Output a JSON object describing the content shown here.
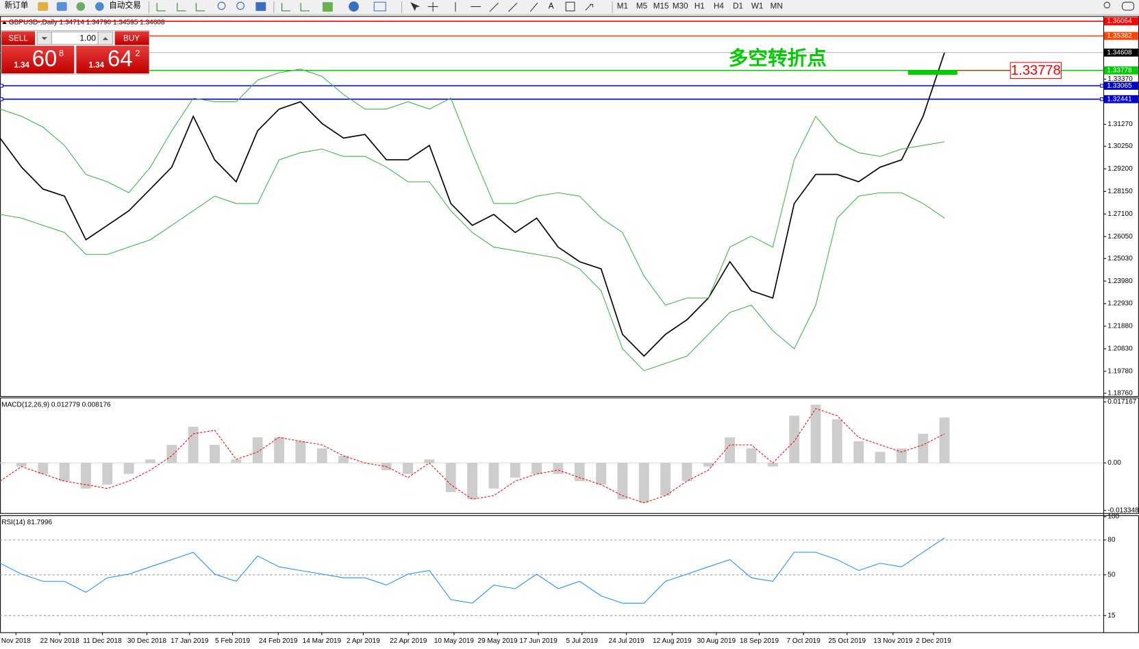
{
  "toolbar": {
    "new_order": "新订单",
    "auto_trading": "自动交易",
    "timeframes": [
      "M1",
      "M5",
      "M15",
      "M30",
      "H1",
      "H4",
      "D1",
      "W1",
      "MN"
    ]
  },
  "trade_panel": {
    "sell": "SELL",
    "buy": "BUY",
    "lots": "1.00",
    "sell_price": {
      "big_figure": "1.34",
      "pips": "60",
      "fraction": "8"
    },
    "buy_price": {
      "big_figure": "1.34",
      "pips": "64",
      "fraction": "2"
    }
  },
  "chart_data": [
    {
      "type": "line",
      "title": "GBPUSD-,Daily 1.34714 1.34790 1.34595 1.34608",
      "xlim": [
        0,
        51.4
      ],
      "ylim": [
        1.1863,
        1.3631
      ],
      "yticks": [
        {
          "value": 1.3337,
          "label": "1.33370"
        },
        {
          "value": 1.3127,
          "label": "1.31270"
        },
        {
          "value": 1.3025,
          "label": "1.30250"
        },
        {
          "value": 1.292,
          "label": "1.29200"
        },
        {
          "value": 1.2815,
          "label": "1.28150"
        },
        {
          "value": 1.271,
          "label": "1.27100"
        },
        {
          "value": 1.2605,
          "label": "1.26050"
        },
        {
          "value": 1.2503,
          "label": "1.25030"
        },
        {
          "value": 1.2398,
          "label": "1.23980"
        },
        {
          "value": 1.2293,
          "label": "1.22930"
        },
        {
          "value": 1.2188,
          "label": "1.21880"
        },
        {
          "value": 1.2083,
          "label": "1.20830"
        },
        {
          "value": 1.1978,
          "label": "1.19780"
        },
        {
          "value": 1.1876,
          "label": "1.18760"
        }
      ],
      "series": [
        {
          "color": "#000000",
          "values": [
            1.3063,
            1.2928,
            1.2826,
            1.2793,
            1.259,
            1.2657,
            1.2725,
            1.2826,
            1.2928,
            1.3164,
            1.2962,
            1.286,
            1.3097,
            1.3198,
            1.3232,
            1.3131,
            1.3063,
            1.308,
            1.2962,
            1.2962,
            1.3029,
            1.2759,
            1.2657,
            1.2708,
            1.2624,
            1.2691,
            1.2556,
            1.2488,
            1.2455,
            1.215,
            1.2049,
            1.215,
            1.2218,
            1.2319,
            1.2488,
            1.2353,
            1.2319,
            1.2759,
            1.2894,
            1.2894,
            1.286,
            1.2928,
            1.2962,
            1.3164,
            1.34608
          ]
        },
        {
          "color": "#3cb34a",
          "values": [
            1.3198,
            1.3164,
            1.3114,
            1.3029,
            1.2894,
            1.286,
            1.2809,
            1.2928,
            1.3097,
            1.3249,
            1.3232,
            1.3232,
            1.3333,
            1.3367,
            1.3384,
            1.335,
            1.3266,
            1.3198,
            1.3198,
            1.3232,
            1.3198,
            1.3249,
            1.2995,
            1.2759,
            1.2759,
            1.2793,
            1.2809,
            1.2793,
            1.2691,
            1.2624,
            1.2421,
            1.2286,
            1.2319,
            1.2319,
            1.2556,
            1.2607,
            1.2556,
            1.2962,
            1.3164,
            1.3046,
            1.2995,
            1.2978,
            1.3012,
            1.3029,
            1.3046
          ]
        },
        {
          "color": "#3cb34a",
          "values": [
            1.2708,
            1.2691,
            1.2657,
            1.2624,
            1.2522,
            1.2522,
            1.2556,
            1.259,
            1.2657,
            1.2725,
            1.2793,
            1.2759,
            1.2759,
            1.2962,
            1.2995,
            1.3012,
            1.2978,
            1.2978,
            1.2928,
            1.286,
            1.286,
            1.2725,
            1.2624,
            1.2556,
            1.2539,
            1.2522,
            1.2505,
            1.2455,
            1.2353,
            1.2083,
            1.1981,
            1.2015,
            1.2049,
            1.215,
            1.2252,
            1.2286,
            1.2167,
            1.2083,
            1.2286,
            1.2691,
            1.2793,
            1.2809,
            1.2809,
            1.2759,
            1.2691
          ]
        }
      ],
      "levels": [
        {
          "value": 1.36064,
          "color": "#ff0000"
        },
        {
          "value": 1.35382,
          "color": "#ff4500"
        },
        {
          "value": 1.33778,
          "color": "#00cc00"
        },
        {
          "value": 1.33065,
          "color": "#0000cd"
        },
        {
          "value": 1.32441,
          "color": "#0000cd"
        }
      ],
      "annotations": {
        "label": "多空转折点",
        "color": "#00cc00"
      }
    },
    {
      "type": "bar",
      "title": "MACD(12,26,9) 0.012779 0.008176",
      "xlim": [
        0,
        51.4
      ],
      "ylim": [
        -0.0141,
        0.0182
      ],
      "yticks": [
        0.017167,
        {
          "value": 0,
          "label": "0.00"
        },
        -0.013348
      ],
      "series": [
        {
          "color": "#c0c0c0",
          "values": [
            0,
            -0.001,
            -0.0031,
            -0.0051,
            -0.0072,
            -0.0061,
            -0.0031,
            0.001,
            0.0051,
            0.0102,
            0.0051,
            0.001,
            0.0072,
            0.0072,
            0.0061,
            0.0041,
            0.002,
            0,
            -0.002,
            -0.0031,
            0.001,
            -0.0082,
            -0.0102,
            -0.0072,
            -0.0041,
            -0.0031,
            -0.0031,
            -0.0051,
            -0.0061,
            -0.0102,
            -0.0112,
            -0.0092,
            -0.0051,
            -0.001,
            0.0072,
            0.0041,
            -0.001,
            0.0133,
            0.0164,
            0.0123,
            0.0061,
            0.0031,
            0.0041,
            0.0082,
            0.012779
          ]
        },
        {
          "type": "line",
          "color": "#ff0000",
          "values": [
            -0.0051,
            -0.001,
            -0.0031,
            -0.0051,
            -0.0061,
            -0.0072,
            -0.0051,
            -0.002,
            0.002,
            0.0082,
            0.0092,
            0.001,
            0.0031,
            0.0072,
            0.0061,
            0.0051,
            0.002,
            0,
            -0.001,
            -0.0041,
            0,
            -0.0061,
            -0.0102,
            -0.0092,
            -0.0051,
            -0.0031,
            -0.002,
            -0.0041,
            -0.0061,
            -0.0092,
            -0.0112,
            -0.0092,
            -0.0051,
            -0.002,
            0.0051,
            0.0051,
            0,
            0.0061,
            0.0153,
            0.0133,
            0.0072,
            0.0051,
            0.0031,
            0.0051,
            0.008176
          ]
        }
      ]
    },
    {
      "type": "line",
      "title": "RSI(14) 81.7996",
      "xlim": [
        0,
        51.4
      ],
      "ylim": [
        0.6,
        100.6
      ],
      "yticks": [
        100,
        80,
        50,
        15
      ],
      "series": [
        {
          "color": "#1e90ff",
          "values": [
            60,
            50.6,
            44.4,
            44.4,
            35,
            47.5,
            50.6,
            56.9,
            63.1,
            69.4,
            50.6,
            44.4,
            66.2,
            56.9,
            53.7,
            50.6,
            47.5,
            47.5,
            41.2,
            50.6,
            53.7,
            28.7,
            25.6,
            41.2,
            38.1,
            50.6,
            38.1,
            44.4,
            31.9,
            25.6,
            25.6,
            44.4,
            50.6,
            56.9,
            63.1,
            47.5,
            44.4,
            69.4,
            69.4,
            63.1,
            53.7,
            60,
            56.9,
            69.4,
            81.7996
          ]
        }
      ],
      "xticks": [
        {
          "value": 0.74,
          "label": "Nov 2018"
        },
        {
          "value": 2.78,
          "label": "22 Nov 2018"
        },
        {
          "value": 4.77,
          "label": "11 Dec 2018"
        },
        {
          "value": 6.84,
          "label": "30 Dec 2018"
        },
        {
          "value": 8.83,
          "label": "17 Jan 2019"
        },
        {
          "value": 10.83,
          "label": "5 Feb 2019"
        },
        {
          "value": 12.96,
          "label": "24 Feb 2019"
        },
        {
          "value": 14.99,
          "label": "14 Mar 2019"
        },
        {
          "value": 16.92,
          "label": "2 Apr 2019"
        },
        {
          "value": 19.02,
          "label": "22 Apr 2019"
        },
        {
          "value": 21.15,
          "label": "10 May 2019"
        },
        {
          "value": 23.18,
          "label": "29 May 2019"
        },
        {
          "value": 25.08,
          "label": "17 Jun 2019"
        },
        {
          "value": 27.11,
          "label": "5 Jul 2019"
        },
        {
          "value": 29.18,
          "label": "24 Jul 2019"
        },
        {
          "value": 31.31,
          "label": "12 Aug 2019"
        },
        {
          "value": 33.37,
          "label": "30 Aug 2019"
        },
        {
          "value": 35.37,
          "label": "18 Sep 2019"
        },
        {
          "value": 37.43,
          "label": "7 Oct 2019"
        },
        {
          "value": 39.46,
          "label": "25 Oct 2019"
        },
        {
          "value": 41.6,
          "label": "13 Nov 2019"
        },
        {
          "value": 43.49,
          "label": "2 Dec 2019"
        }
      ]
    }
  ]
}
